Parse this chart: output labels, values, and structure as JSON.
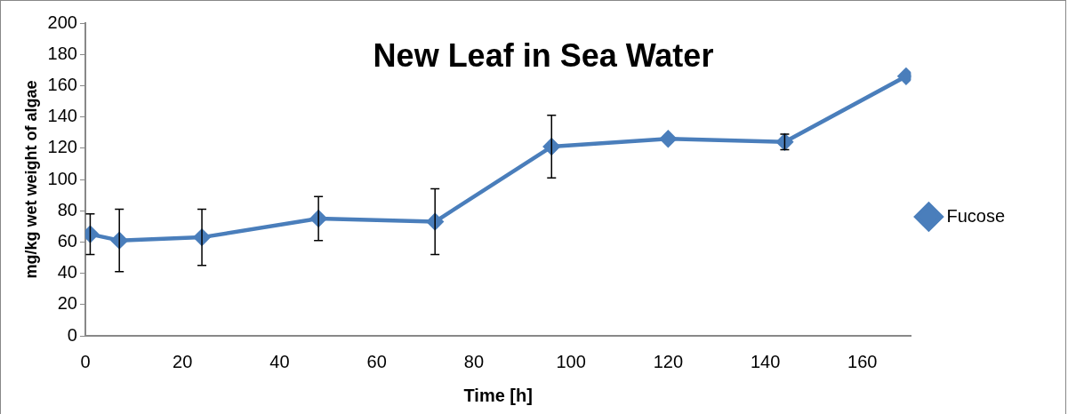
{
  "chart_data": {
    "type": "line",
    "title": "New Leaf in Sea Water",
    "xlabel": "Time [h]",
    "ylabel": "mg/kg wet weight of algae",
    "x": [
      1,
      7,
      24,
      48,
      72,
      96,
      120,
      144,
      169
    ],
    "series": [
      {
        "name": "Fucose",
        "color": "#4a7ebb",
        "values": [
          65,
          61,
          63,
          75,
          73,
          121,
          126,
          124,
          166
        ],
        "errors": [
          13,
          20,
          18,
          14,
          21,
          20,
          null,
          5,
          null
        ]
      }
    ],
    "xlim": [
      0,
      170
    ],
    "xticks": [
      0,
      20,
      40,
      60,
      80,
      100,
      120,
      140,
      160
    ],
    "ylim": [
      0,
      200
    ],
    "yticks": [
      0,
      20,
      40,
      60,
      80,
      100,
      120,
      140,
      160,
      180,
      200
    ],
    "grid": false,
    "legend": "right",
    "marker": "diamond",
    "line_style": "solid"
  }
}
